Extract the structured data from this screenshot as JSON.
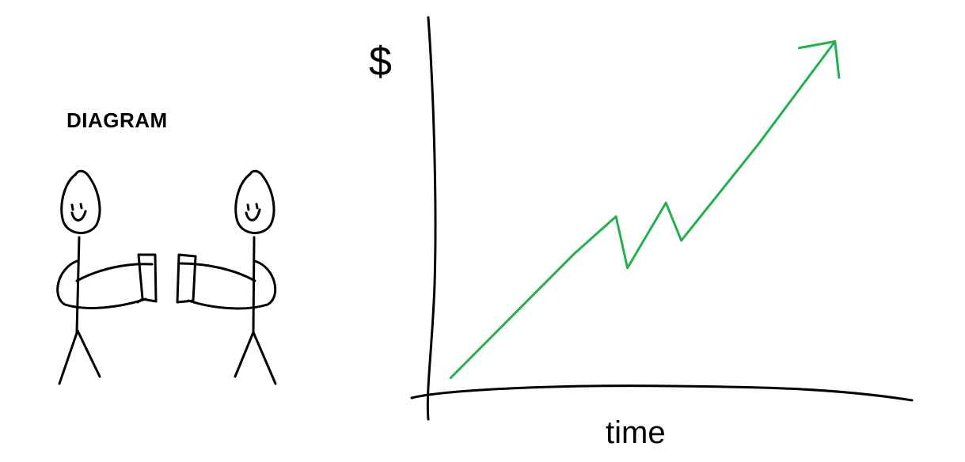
{
  "diagram": {
    "title": "DIAGRAM",
    "figures": [
      "person-left",
      "person-right"
    ]
  },
  "chart_data": {
    "type": "line",
    "ylabel": "$",
    "xlabel": "time",
    "series": [
      {
        "x": [
          0,
          3.2,
          4.3,
          4.6,
          5.6,
          6.0,
          8.0,
          10.0
        ],
        "y": [
          0,
          3.6,
          4.7,
          3.2,
          5.1,
          4.0,
          6.8,
          9.8
        ]
      }
    ],
    "xlim": [
      -0.5,
      12
    ],
    "ylim": [
      -0.4,
      10.5
    ],
    "trend": "up",
    "line_color": "#22b14c",
    "axis_color": "#000000"
  }
}
